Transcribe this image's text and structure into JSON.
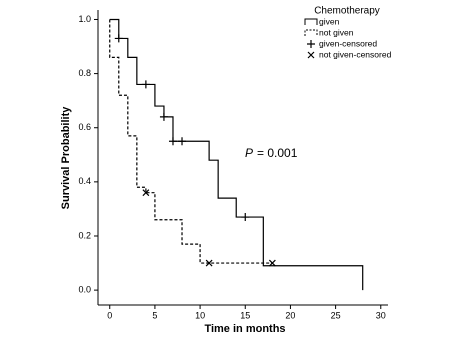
{
  "chart_data": {
    "type": "step",
    "title": null,
    "xlabel": "Time in months",
    "ylabel": "Survival Probability",
    "xlim": [
      -1.3,
      30.8
    ],
    "ylim": [
      -0.055,
      1.035
    ],
    "xticks": [
      0,
      5,
      10,
      15,
      20,
      25,
      30
    ],
    "yticks": [
      {
        "value": 0,
        "label": "0.0"
      },
      {
        "value": 0.2,
        "label": "0.2"
      },
      {
        "value": 0.4,
        "label": "0.4"
      },
      {
        "value": 0.6,
        "label": "0.6"
      },
      {
        "value": 0.8,
        "label": "0.8"
      },
      {
        "value": 1,
        "label": "1.0"
      }
    ],
    "legend_title": "Chemotherapy",
    "legend_position": "upper right",
    "annotation": {
      "symbol": "P",
      "text": "= 0.001"
    },
    "series": [
      {
        "name": "given",
        "kind": "line",
        "dash": false,
        "color": "#000000",
        "x": [
          0,
          1,
          2,
          3,
          5,
          6,
          7,
          11,
          12,
          14,
          17,
          28
        ],
        "values": [
          1.0,
          0.93,
          0.86,
          0.76,
          0.68,
          0.64,
          0.55,
          0.48,
          0.34,
          0.27,
          0.09,
          0
        ]
      },
      {
        "name": "not given",
        "kind": "line",
        "dash": true,
        "color": "#000000",
        "x": [
          0,
          0,
          1,
          2,
          3,
          4,
          5,
          8,
          10,
          18
        ],
        "values": [
          1.0,
          0.86,
          0.72,
          0.57,
          0.38,
          0.36,
          0.26,
          0.17,
          0.1,
          0.1
        ]
      },
      {
        "name": "given-censored",
        "kind": "plus",
        "color": "#000000",
        "x": [
          1,
          4,
          6,
          7,
          8,
          15
        ],
        "values": [
          0.93,
          0.76,
          0.64,
          0.55,
          0.55,
          0.27
        ]
      },
      {
        "name": "not given-censored",
        "kind": "cross",
        "color": "#000000",
        "x": [
          4,
          11,
          18
        ],
        "values": [
          0.36,
          0.1,
          0.1
        ]
      }
    ]
  }
}
